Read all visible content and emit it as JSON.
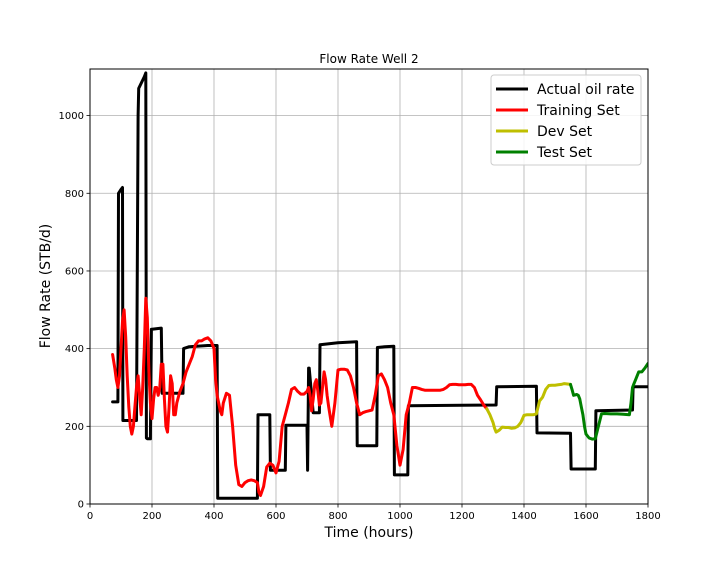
{
  "chart_data": {
    "type": "line",
    "title": "Flow Rate Well 2",
    "xlabel": "Time (hours)",
    "ylabel": "Flow Rate (STB/d)",
    "xlim": [
      0,
      1800
    ],
    "ylim": [
      0,
      1120
    ],
    "xticks": [
      0,
      200,
      400,
      600,
      800,
      1000,
      1200,
      1400,
      1600,
      1800
    ],
    "yticks": [
      0,
      200,
      400,
      600,
      800,
      1000
    ],
    "grid": true,
    "legend_position": "top-right",
    "series": [
      {
        "name": "Actual oil rate",
        "color": "#000000",
        "x": [
          73,
          90,
          92,
          100,
          105,
          106,
          125,
          150,
          155,
          157,
          175,
          180,
          182,
          185,
          195,
          198,
          200,
          230,
          233,
          300,
          302,
          320,
          380,
          410,
          412,
          540,
          542,
          580,
          582,
          630,
          632,
          700,
          702,
          705,
          707,
          720,
          722,
          740,
          742,
          800,
          860,
          862,
          925,
          927,
          950,
          980,
          982,
          1025,
          1027,
          1200,
          1310,
          1312,
          1440,
          1442,
          1550,
          1552,
          1630,
          1632,
          1750,
          1752,
          1800
        ],
        "y": [
          263,
          263,
          800,
          810,
          815,
          215,
          215,
          215,
          1000,
          1070,
          1100,
          1110,
          170,
          168,
          168,
          450,
          450,
          453,
          285,
          285,
          400,
          405,
          408,
          408,
          15,
          15,
          230,
          230,
          87,
          87,
          203,
          203,
          87,
          350,
          350,
          235,
          235,
          235,
          410,
          415,
          418,
          150,
          150,
          403,
          405,
          406,
          75,
          75,
          253,
          254,
          255,
          302,
          303,
          183,
          182,
          90,
          90,
          240,
          242,
          302,
          302
        ]
      },
      {
        "name": "Training Set",
        "color": "#ff0000",
        "x": [
          73,
          80,
          85,
          90,
          95,
          100,
          105,
          110,
          115,
          120,
          125,
          130,
          135,
          140,
          145,
          150,
          155,
          160,
          165,
          170,
          175,
          180,
          185,
          190,
          195,
          200,
          205,
          210,
          215,
          220,
          225,
          230,
          235,
          240,
          245,
          250,
          255,
          260,
          265,
          270,
          275,
          280,
          290,
          300,
          310,
          320,
          330,
          340,
          350,
          360,
          370,
          380,
          390,
          400,
          405,
          410,
          415,
          420,
          425,
          430,
          440,
          450,
          460,
          470,
          480,
          490,
          500,
          510,
          520,
          530,
          540,
          545,
          550,
          560,
          570,
          580,
          590,
          600,
          610,
          620,
          630,
          640,
          650,
          660,
          670,
          680,
          690,
          700,
          705,
          710,
          715,
          720,
          725,
          730,
          735,
          740,
          745,
          750,
          755,
          760,
          765,
          770,
          780,
          790,
          800,
          810,
          820,
          830,
          840,
          850,
          860,
          870,
          880,
          890,
          900,
          910,
          920,
          930,
          940,
          950,
          960,
          970,
          980,
          990,
          1000,
          1010,
          1020,
          1030,
          1040,
          1050,
          1060,
          1070,
          1080,
          1090,
          1100,
          1110,
          1120,
          1130,
          1140,
          1150,
          1160,
          1170,
          1180,
          1190,
          1200,
          1210,
          1220,
          1230,
          1240,
          1250,
          1260,
          1270,
          1280
        ],
        "y": [
          385,
          350,
          320,
          300,
          330,
          400,
          470,
          500,
          430,
          330,
          250,
          200,
          180,
          200,
          250,
          300,
          330,
          280,
          230,
          300,
          400,
          530,
          480,
          340,
          260,
          220,
          270,
          300,
          300,
          280,
          300,
          360,
          360,
          270,
          200,
          185,
          250,
          330,
          310,
          230,
          230,
          260,
          290,
          310,
          340,
          360,
          380,
          410,
          420,
          420,
          425,
          428,
          420,
          400,
          320,
          280,
          260,
          240,
          230,
          260,
          285,
          280,
          200,
          100,
          50,
          45,
          55,
          60,
          62,
          60,
          55,
          30,
          22,
          45,
          95,
          105,
          100,
          80,
          110,
          200,
          230,
          260,
          295,
          300,
          290,
          283,
          283,
          290,
          300,
          280,
          240,
          270,
          310,
          320,
          290,
          255,
          260,
          300,
          340,
          320,
          280,
          250,
          200,
          260,
          345,
          347,
          347,
          345,
          330,
          300,
          260,
          230,
          235,
          238,
          240,
          242,
          280,
          330,
          335,
          320,
          300,
          260,
          230,
          150,
          100,
          140,
          230,
          260,
          300,
          300,
          298,
          295,
          293,
          293,
          293,
          293,
          293,
          293,
          295,
          300,
          307,
          308,
          308,
          307,
          307,
          307,
          308,
          308,
          300,
          280,
          268,
          255,
          245
        ]
      },
      {
        "name": "Dev Set",
        "color": "#bfbf00",
        "x": [
          1280,
          1290,
          1300,
          1305,
          1310,
          1320,
          1330,
          1340,
          1350,
          1360,
          1370,
          1380,
          1390,
          1400,
          1410,
          1420,
          1430,
          1440,
          1450,
          1460,
          1470,
          1480,
          1490,
          1500,
          1510,
          1520,
          1530,
          1540,
          1550
        ],
        "y": [
          245,
          230,
          210,
          195,
          185,
          190,
          198,
          197,
          197,
          195,
          196,
          200,
          210,
          228,
          230,
          230,
          230,
          232,
          265,
          275,
          295,
          305,
          306,
          306,
          307,
          308,
          310,
          309,
          308
        ]
      },
      {
        "name": "Test Set",
        "color": "#008000",
        "x": [
          1550,
          1555,
          1560,
          1570,
          1575,
          1580,
          1585,
          1590,
          1595,
          1600,
          1610,
          1620,
          1630,
          1640,
          1650,
          1660,
          1680,
          1700,
          1720,
          1740,
          1745,
          1750,
          1755,
          1760,
          1770,
          1780,
          1790,
          1800
        ],
        "y": [
          308,
          295,
          280,
          282,
          280,
          270,
          250,
          230,
          200,
          180,
          170,
          167,
          168,
          200,
          232,
          233,
          232,
          232,
          231,
          230,
          260,
          300,
          310,
          320,
          340,
          340,
          350,
          362
        ]
      }
    ]
  }
}
